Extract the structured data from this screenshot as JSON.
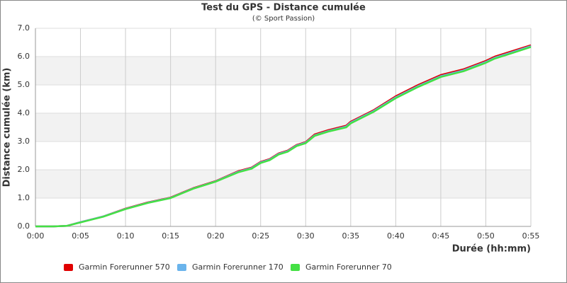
{
  "chart_data": {
    "type": "line",
    "title": "Test du GPS - Distance cumulée",
    "subtitle": "(© Sport Passion)",
    "x_label": "Durée (hh:mm)",
    "y_label": "Distance cumulée (km)",
    "x": [
      0,
      2,
      3.5,
      5,
      7.5,
      10,
      12.5,
      15,
      17.5,
      20,
      22.5,
      24,
      25,
      26,
      27,
      28,
      29,
      30,
      31,
      32.5,
      34.5,
      35,
      37.5,
      40,
      42.5,
      45,
      47.5,
      50,
      51,
      52.5,
      55
    ],
    "series": [
      {
        "name": "Garmin Forerunner 570",
        "color": "#e00000",
        "values": [
          0,
          0,
          0.02,
          0.15,
          0.35,
          0.63,
          0.85,
          1.02,
          1.35,
          1.6,
          1.95,
          2.08,
          2.28,
          2.38,
          2.58,
          2.68,
          2.88,
          2.98,
          3.25,
          3.4,
          3.56,
          3.7,
          4.1,
          4.6,
          5.0,
          5.35,
          5.55,
          5.85,
          6.0,
          6.15,
          6.4
        ]
      },
      {
        "name": "Garmin Forerunner 170",
        "color": "#6ab4ec",
        "values": [
          0,
          0,
          0.02,
          0.15,
          0.35,
          0.62,
          0.84,
          1.01,
          1.34,
          1.59,
          1.93,
          2.06,
          2.26,
          2.36,
          2.56,
          2.66,
          2.86,
          2.96,
          3.22,
          3.37,
          3.53,
          3.67,
          4.07,
          4.56,
          4.96,
          5.31,
          5.51,
          5.81,
          5.96,
          6.11,
          6.37
        ]
      },
      {
        "name": "Garmin Forerunner 70",
        "color": "#44e044",
        "values": [
          0,
          0,
          0.02,
          0.14,
          0.34,
          0.61,
          0.83,
          1.0,
          1.33,
          1.58,
          1.91,
          2.04,
          2.24,
          2.34,
          2.54,
          2.64,
          2.84,
          2.94,
          3.2,
          3.35,
          3.5,
          3.64,
          4.04,
          4.53,
          4.93,
          5.28,
          5.48,
          5.78,
          5.93,
          6.08,
          6.34
        ]
      }
    ],
    "xlim": [
      0,
      55
    ],
    "xticks": [
      {
        "value": 0,
        "label": "0:00"
      },
      {
        "value": 5,
        "label": "0:05"
      },
      {
        "value": 10,
        "label": "0:10"
      },
      {
        "value": 15,
        "label": "0:15"
      },
      {
        "value": 20,
        "label": "0:20"
      },
      {
        "value": 25,
        "label": "0:25"
      },
      {
        "value": 30,
        "label": "0:30"
      },
      {
        "value": 35,
        "label": "0:35"
      },
      {
        "value": 40,
        "label": "0:40"
      },
      {
        "value": 45,
        "label": "0:45"
      },
      {
        "value": 50,
        "label": "0:50"
      },
      {
        "value": 55,
        "label": "0:55"
      }
    ],
    "ylim": [
      0,
      7
    ],
    "yticks": [
      {
        "value": 0,
        "label": "0.0"
      },
      {
        "value": 1,
        "label": "1.0"
      },
      {
        "value": 2,
        "label": "2.0"
      },
      {
        "value": 3,
        "label": "3.0"
      },
      {
        "value": 4,
        "label": "4.0"
      },
      {
        "value": 5,
        "label": "5.0"
      },
      {
        "value": 6,
        "label": "6.0"
      },
      {
        "value": 7,
        "label": "7.0"
      }
    ],
    "grid": true,
    "legend": "bottom"
  }
}
